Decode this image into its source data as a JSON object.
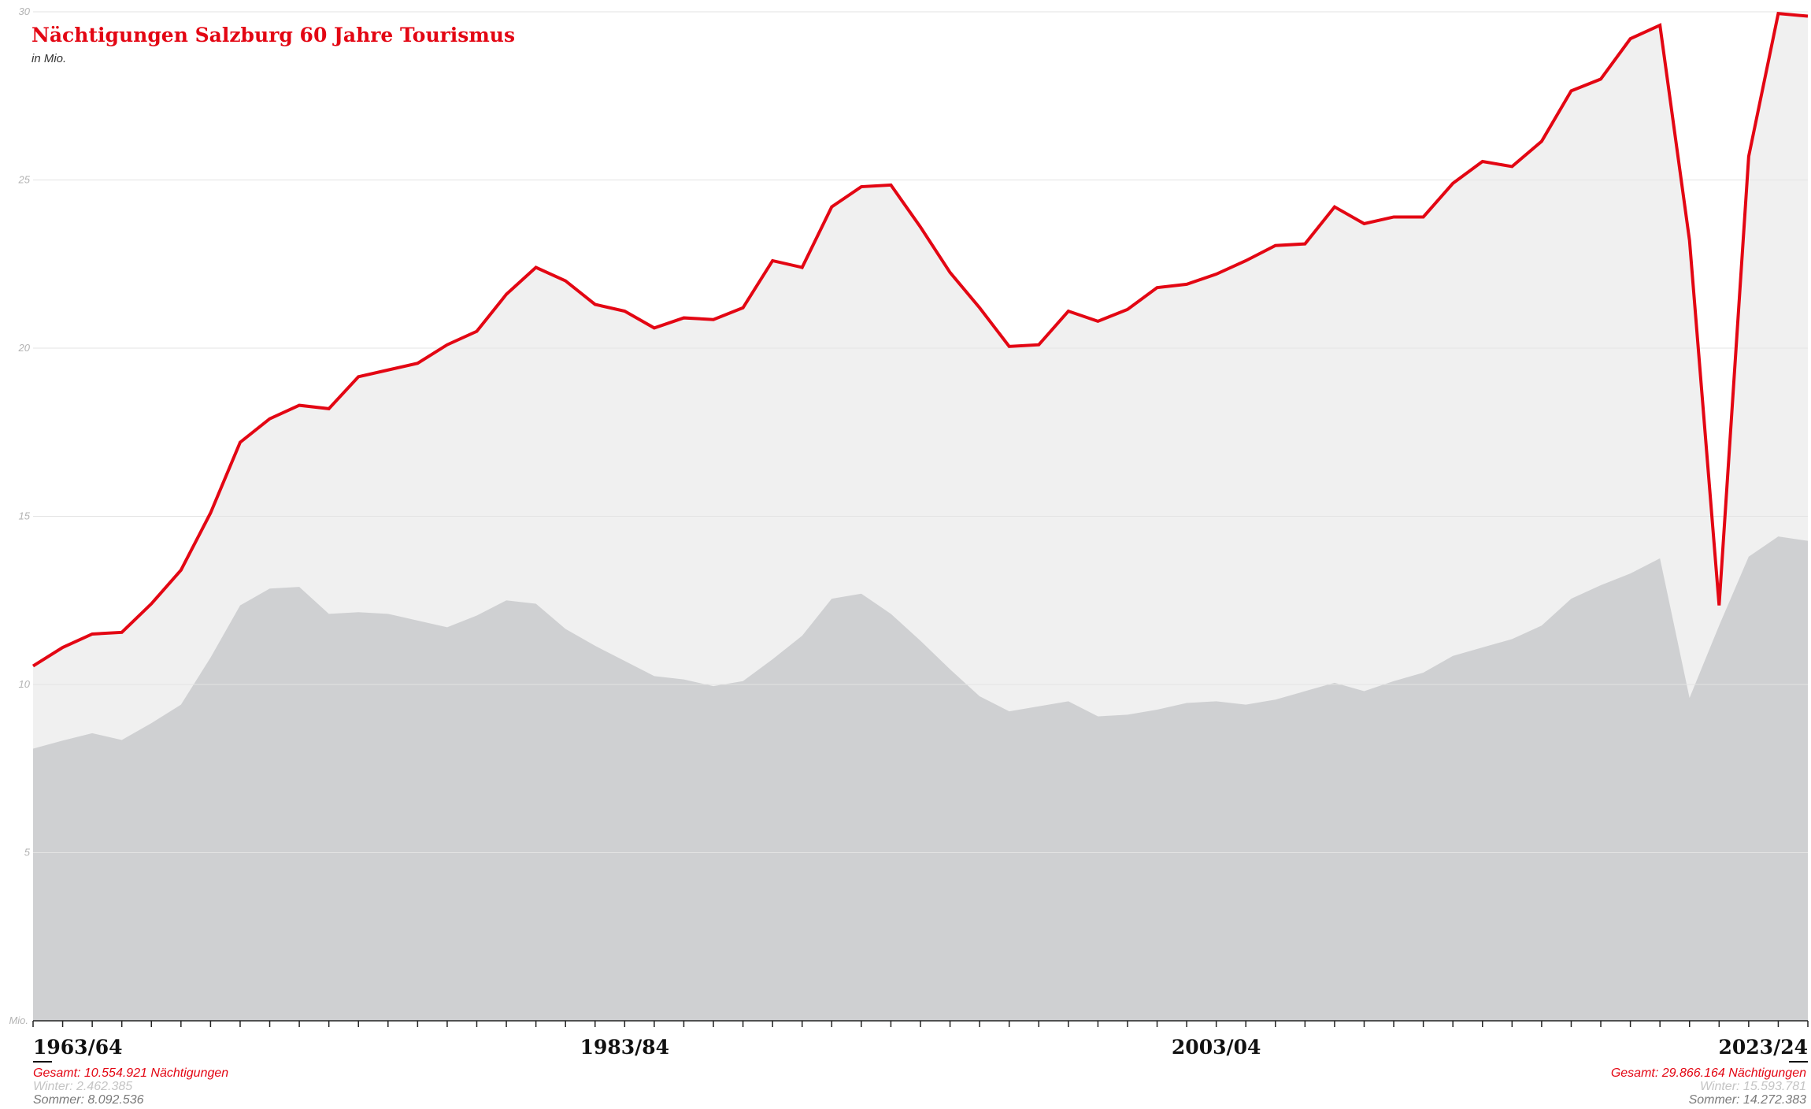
{
  "chart_data": {
    "type": "area",
    "title": "Nächtigungen Salzburg 60 Jahre Tourismus",
    "subtitle": "in Mio.",
    "y_unit_label": "Mio.",
    "ylim": [
      0,
      30
    ],
    "yticks": [
      5,
      10,
      15,
      20,
      25,
      30
    ],
    "x_labels": [
      "1963/64",
      "1983/84",
      "2003/04",
      "2023/24"
    ],
    "x_start_year": 1963,
    "series": [
      {
        "values": [
          10.55,
          11.1,
          11.5,
          11.55,
          12.4,
          13.4,
          15.1,
          17.2,
          17.9,
          18.3,
          18.2,
          19.15,
          19.35,
          19.55,
          20.1,
          20.5,
          21.6,
          22.4,
          22.0,
          21.3,
          21.1,
          20.6,
          20.9,
          20.85,
          21.2,
          22.6,
          22.4,
          24.2,
          24.8,
          24.85,
          23.6,
          22.25,
          21.2,
          20.05,
          20.1,
          21.1,
          20.8,
          21.15,
          21.8,
          21.9,
          22.2,
          22.6,
          23.05,
          23.1,
          24.2,
          23.7,
          23.9,
          23.9,
          24.9,
          25.55,
          25.4,
          26.15,
          27.65,
          28.0,
          29.2,
          29.6,
          23.2,
          12.35,
          25.7,
          29.95,
          29.87
        ],
        "color": "#e30613"
      },
      {
        "values": [
          8.09,
          8.33,
          8.55,
          8.35,
          8.85,
          9.4,
          10.8,
          12.35,
          12.85,
          12.9,
          12.1,
          12.15,
          12.1,
          11.9,
          11.7,
          12.05,
          12.5,
          12.4,
          11.65,
          11.15,
          10.7,
          10.25,
          10.15,
          9.95,
          10.1,
          10.75,
          11.45,
          12.55,
          12.7,
          12.1,
          11.3,
          10.45,
          9.65,
          9.2,
          9.35,
          9.5,
          9.05,
          9.1,
          9.25,
          9.45,
          9.5,
          9.4,
          9.55,
          9.8,
          10.05,
          9.8,
          10.1,
          10.35,
          10.85,
          11.1,
          11.35,
          11.75,
          12.55,
          12.95,
          13.3,
          13.75,
          9.6,
          11.75,
          13.8,
          14.4,
          14.27
        ],
        "color": "#cfd0d2"
      }
    ],
    "grid": true,
    "legend": "none"
  },
  "annotations": {
    "first": {
      "total": "Gesamt: 10.554.921 Nächtigungen",
      "winter": "Winter: 2.462.385",
      "summer": "Sommer: 8.092.536"
    },
    "last": {
      "total": "Gesamt: 29.866.164 Nächtigungen",
      "winter": "Winter: 15.593.781",
      "summer": "Sommer: 14.272.383"
    }
  },
  "colors": {
    "accent": "#e30613",
    "total_fill": "#f0f0f0",
    "summer_fill": "#cfd0d2",
    "gridline": "#e3e3e3"
  }
}
